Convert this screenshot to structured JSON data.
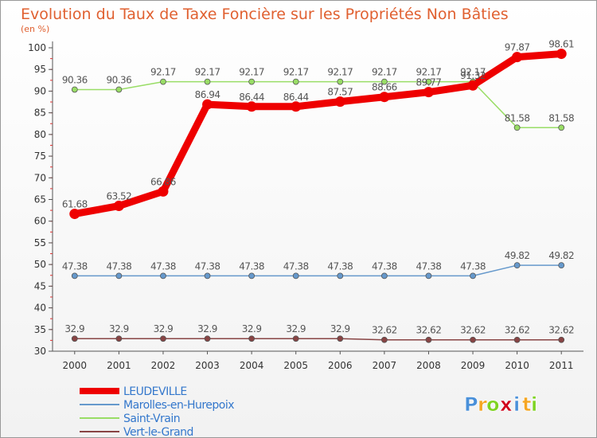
{
  "chart_data": {
    "type": "line",
    "title": "Evolution du Taux de Taxe Foncière sur les Propriétés Non Bâties",
    "ylabel": "(en %)",
    "xlabel": "",
    "x": [
      "2000",
      "2001",
      "2002",
      "2003",
      "2004",
      "2005",
      "2006",
      "2007",
      "2008",
      "2009",
      "2010",
      "2011"
    ],
    "ylim": [
      30,
      100
    ],
    "yticks": [
      30,
      35,
      40,
      45,
      50,
      55,
      60,
      65,
      70,
      75,
      80,
      85,
      90,
      95,
      100
    ],
    "grid": false,
    "legend": "bottom-left",
    "series": [
      {
        "name": "LEUDEVILLE",
        "color": "#ee0000",
        "values": [
          61.68,
          63.52,
          66.86,
          86.94,
          86.44,
          86.44,
          87.57,
          88.66,
          89.77,
          91.32,
          97.87,
          98.61
        ],
        "labels": [
          "61.68",
          "63.52",
          "66.86",
          "86.94",
          "86.44",
          "86.44",
          "87.57",
          "88.66",
          "89.77",
          "91.32",
          "97.87",
          "98.61"
        ]
      },
      {
        "name": "Marolles-en-Hurepoix",
        "color": "#6699cc",
        "values": [
          47.38,
          47.38,
          47.38,
          47.38,
          47.38,
          47.38,
          47.38,
          47.38,
          47.38,
          47.38,
          49.82,
          49.82
        ],
        "labels": [
          "47.38",
          "47.38",
          "47.38",
          "47.38",
          "47.38",
          "47.38",
          "47.38",
          "47.38",
          "47.38",
          "47.38",
          "49.82",
          "49.82"
        ]
      },
      {
        "name": "Saint-Vrain",
        "color": "#99dd66",
        "values": [
          90.36,
          90.36,
          92.17,
          92.17,
          92.17,
          92.17,
          92.17,
          92.17,
          92.17,
          92.17,
          81.58,
          81.58
        ],
        "labels": [
          "90.36",
          "90.36",
          "92.17",
          "92.17",
          "92.17",
          "92.17",
          "92.17",
          "92.17",
          "92.17",
          "92.17",
          "81.58",
          "81.58"
        ]
      },
      {
        "name": "Vert-le-Grand",
        "color": "#884444",
        "values": [
          32.9,
          32.9,
          32.9,
          32.9,
          32.9,
          32.9,
          32.9,
          32.62,
          32.62,
          32.62,
          32.62,
          32.62
        ],
        "labels": [
          "32.9",
          "32.9",
          "32.9",
          "32.9",
          "32.9",
          "32.9",
          "32.9",
          "32.62",
          "32.62",
          "32.62",
          "32.62",
          "32.62"
        ]
      }
    ]
  },
  "logo": {
    "letters": [
      "P",
      "r",
      "o",
      "x",
      "i",
      "t",
      "i"
    ],
    "colors": [
      "#4a90d9",
      "#f5a623",
      "#7ed321",
      "#d0021b",
      "#4a90d9",
      "#f5a623",
      "#7ed321"
    ]
  }
}
